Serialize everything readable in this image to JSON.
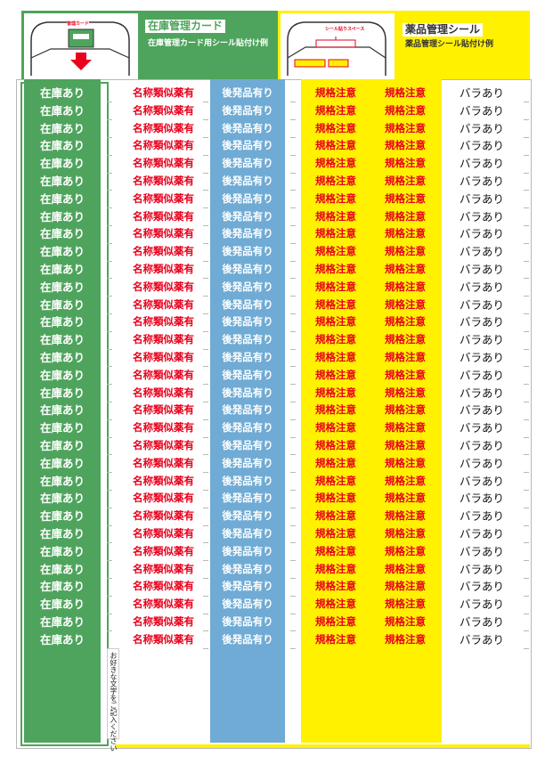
{
  "header": {
    "left": {
      "title": "在庫管理カード",
      "subtitle": "在庫管理カード用シール貼付け例",
      "illustration_label": "管理カード",
      "bg_color": "#4ea45c"
    },
    "right": {
      "title": "薬品管理シール",
      "subtitle": "薬品管理シール貼付け例",
      "illustration_label": "シール貼りスペース",
      "bg_color": "#fff100"
    }
  },
  "columns": [
    {
      "label": "在庫あり",
      "bg": "#4ea45c",
      "color": "#ffffff"
    },
    {
      "label": "名称類似薬有",
      "bg": "#ffffff",
      "color": "#e8001c"
    },
    {
      "label": "後発品有り",
      "bg": "#6fabd4",
      "color": "#ffffff"
    },
    {
      "label": "規格注意",
      "bg": "#fff100",
      "color": "#e8001c"
    },
    {
      "label": "規格注意",
      "bg": "#fff100",
      "color": "#e8001c"
    },
    {
      "label": "バラあり",
      "bg": "#ffffff",
      "color": "#111111"
    }
  ],
  "rows": 32,
  "free_text_note": "お好きな文字をご記入ください"
}
